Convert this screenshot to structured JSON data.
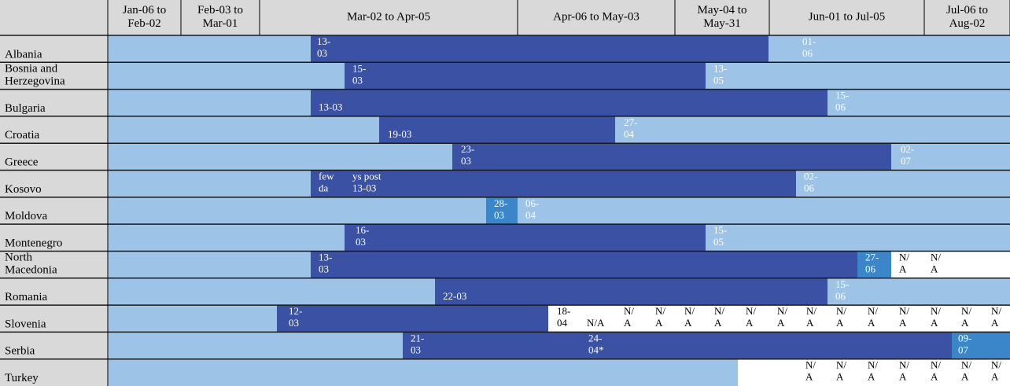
{
  "header": {
    "periods": [
      [
        "Jan-06 to",
        "Feb-02"
      ],
      [
        "Feb-03 to",
        "Mar-01"
      ],
      [
        "Mar-02 to Apr-05"
      ],
      [
        "Apr-06 to May-03"
      ],
      [
        "May-04 to",
        "May-31"
      ],
      [
        "Jun-01 to Jul-05"
      ],
      [
        "Jul-06 to",
        "Aug-02"
      ]
    ]
  },
  "rows": [
    {
      "country": [
        "Albania"
      ],
      "labels": [
        [
          "13-",
          "03"
        ],
        [
          "01-",
          "06"
        ]
      ]
    },
    {
      "country": [
        "Bosnia and",
        "Herzegovina"
      ],
      "labels": [
        [
          "15-",
          "03"
        ],
        [
          "13-",
          "05"
        ]
      ]
    },
    {
      "country": [
        "Bulgaria"
      ],
      "labels": [
        "13-03",
        [
          "15-",
          "06"
        ]
      ]
    },
    {
      "country": [
        "Croatia"
      ],
      "labels": [
        "19-03",
        [
          "27-",
          "04"
        ]
      ]
    },
    {
      "country": [
        "Greece"
      ],
      "labels": [
        [
          "23-",
          "03"
        ],
        [
          "02-",
          "07"
        ]
      ]
    },
    {
      "country": [
        "Kosovo"
      ],
      "labels": [
        [
          "few",
          "da"
        ],
        [
          "ys post",
          "13-03"
        ],
        [
          "02-",
          "06"
        ]
      ]
    },
    {
      "country": [
        "Moldova"
      ],
      "labels": [
        [
          "28-",
          "03"
        ],
        [
          "06-",
          "04"
        ]
      ]
    },
    {
      "country": [
        "Montenegro"
      ],
      "labels": [
        [
          "16-",
          "03"
        ],
        [
          "15-",
          "05"
        ]
      ]
    },
    {
      "country": [
        "North",
        "Macedonia"
      ],
      "labels": [
        [
          "13-",
          "03"
        ],
        [
          "27-",
          "06"
        ],
        [
          "N/",
          "A"
        ],
        [
          "N/",
          "A"
        ]
      ]
    },
    {
      "country": [
        "Romania"
      ],
      "labels": [
        "22-03",
        [
          "15-",
          "06"
        ]
      ]
    },
    {
      "country": [
        "Slovenia"
      ],
      "labels": [
        [
          "12-",
          "03"
        ],
        [
          "18-",
          "04"
        ],
        "N/A",
        [
          "N/",
          "A"
        ],
        [
          "N/",
          "A"
        ],
        [
          "N/",
          "A"
        ],
        [
          "N/",
          "A"
        ],
        [
          "N/",
          "A"
        ],
        [
          "N/",
          "A"
        ],
        [
          "N/",
          "A"
        ],
        [
          "N/",
          "A"
        ],
        [
          "N/",
          "A"
        ],
        [
          "N/",
          "A"
        ],
        [
          "N/",
          "A"
        ],
        [
          "N/",
          "A"
        ],
        [
          "N/",
          "A"
        ]
      ]
    },
    {
      "country": [
        "Serbia"
      ],
      "labels": [
        [
          "21-",
          "03"
        ],
        [
          "24-",
          "04*"
        ],
        [
          "09-",
          "07"
        ]
      ]
    },
    {
      "country": [
        "Turkey"
      ],
      "labels": [
        [
          "N/",
          "A"
        ],
        [
          "N/",
          "A"
        ],
        [
          "N/",
          "A"
        ],
        [
          "N/",
          "A"
        ],
        [
          "N/",
          "A"
        ],
        [
          "N/",
          "A"
        ],
        [
          "N/",
          "A"
        ]
      ]
    }
  ]
}
